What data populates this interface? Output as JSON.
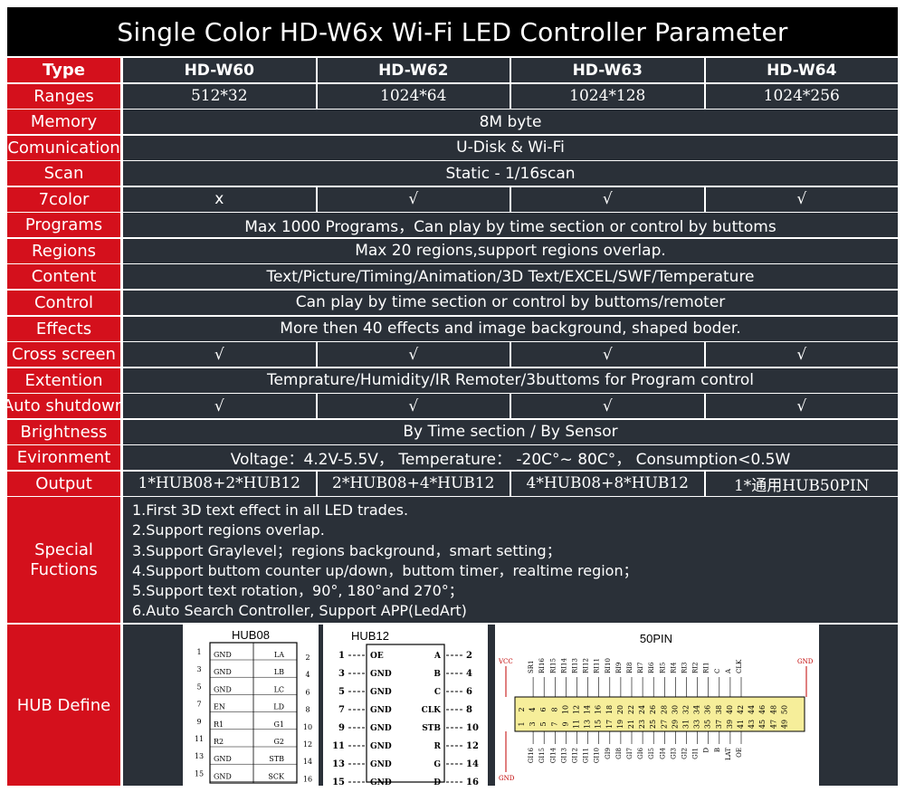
{
  "title": "Single Color HD-W6x Wi-Fi LED Controller Parameter",
  "colors": {
    "label_bg": "#d4101c",
    "value_bg": "#2a3038",
    "title_bg": "#000000",
    "text": "#ffffff"
  },
  "header": {
    "label": "Type",
    "models": [
      "HD-W60",
      "HD-W62",
      "HD-W63",
      "HD-W64"
    ]
  },
  "rows": [
    {
      "label": "Ranges",
      "values": [
        "512*32",
        "1024*64",
        "1024*128",
        "1024*256"
      ]
    },
    {
      "label": "Memory",
      "span": "8M byte"
    },
    {
      "label": "Comunication",
      "span": "U-Disk & Wi-Fi"
    },
    {
      "label": "Scan",
      "span": "Static - 1/16scan"
    },
    {
      "label": "7color",
      "values": [
        "x",
        "√",
        "√",
        "√"
      ]
    },
    {
      "label": "Programs",
      "span": "Max 1000 Programs，Can play by time section or control by buttoms"
    },
    {
      "label": "Regions",
      "span": "Max 20 regions,support regions overlap."
    },
    {
      "label": "Content",
      "span": "Text/Picture/Timing/Animation/3D Text/EXCEL/SWF/Temperature"
    },
    {
      "label": "Control",
      "span": "Can play by time section or control by buttoms/remoter"
    },
    {
      "label": "Effects",
      "span": "More then 40 effects and image background, shaped boder."
    },
    {
      "label": "Cross screen",
      "values": [
        "√",
        "√",
        "√",
        "√"
      ]
    },
    {
      "label": "Extention",
      "span": "Temprature/Humidity/IR Remoter/3buttoms for Program control"
    },
    {
      "label": "Auto shutdown",
      "values": [
        "√",
        "√",
        "√",
        "√"
      ]
    },
    {
      "label": "Brightness",
      "span": "By Time section / By Sensor"
    },
    {
      "label": "Evironment",
      "span": "Voltage：4.2V-5.5V，  Temperature： -20C°~ 80C°，  Consumption<0.5W"
    },
    {
      "label": "Output",
      "values": [
        "1*HUB08+2*HUB12",
        "2*HUB08+4*HUB12",
        "4*HUB08+8*HUB12",
        "1*通用HUB50PIN"
      ]
    }
  ],
  "special": {
    "label": "Special Fuctions",
    "items": [
      "1.First 3D text effect in all LED trades.",
      "2.Support regions overlap.",
      "3.Support Graylevel；regions background，smart setting；",
      "4.Support buttom counter up/down，buttom timer，realtime region；",
      "5.Support text rotation，90°, 180°and 270°；",
      "6.Auto Search Controller, Support APP(LedArt)"
    ]
  },
  "hub": {
    "label": "HUB Define",
    "hub08": {
      "title": "HUB08",
      "left_nums": [
        "1",
        "3",
        "5",
        "7",
        "9",
        "11",
        "13",
        "15"
      ],
      "left_sig": [
        "GND",
        "GND",
        "GND",
        "EN",
        "R1",
        "R2",
        "GND",
        "GND"
      ],
      "right_sig": [
        "LA",
        "LB",
        "LC",
        "LD",
        "G1",
        "G2",
        "STB",
        "SCK"
      ],
      "right_nums": [
        "2",
        "4",
        "6",
        "8",
        "10",
        "12",
        "14",
        "16"
      ]
    },
    "hub12": {
      "title": "HUB12",
      "left_nums": [
        "1",
        "3",
        "5",
        "7",
        "9",
        "11",
        "13",
        "15"
      ],
      "left_sig": [
        "OE",
        "GND",
        "GND",
        "GND",
        "GND",
        "GND",
        "GND",
        "GND"
      ],
      "right_sig": [
        "A",
        "B",
        "C",
        "CLK",
        "STB",
        "R",
        "G",
        "D"
      ],
      "right_nums": [
        "2",
        "4",
        "6",
        "8",
        "10",
        "12",
        "14",
        "16"
      ]
    },
    "hub50": {
      "title": "50PIN",
      "vcc": "VCC",
      "gnd_top": "GND",
      "gnd_bottom": "GND",
      "top_sig": [
        "SR1",
        "RI16",
        "RI15",
        "RI14",
        "RI13",
        "RI12",
        "RI11",
        "RI10",
        "RI9",
        "RI8",
        "RI7",
        "RI6",
        "RI5",
        "RI4",
        "RI3",
        "RI2",
        "RI1",
        "C",
        "A",
        "CLK"
      ],
      "even_nums": [
        "2",
        "4",
        "6",
        "8",
        "10",
        "12",
        "14",
        "16",
        "18",
        "20",
        "22",
        "24",
        "26",
        "28",
        "30",
        "32",
        "34",
        "36",
        "38",
        "40",
        "42",
        "44",
        "46",
        "48",
        "50"
      ],
      "odd_nums": [
        "1",
        "3",
        "5",
        "7",
        "9",
        "11",
        "13",
        "15",
        "17",
        "19",
        "21",
        "23",
        "25",
        "27",
        "29",
        "31",
        "33",
        "35",
        "37",
        "39",
        "41",
        "43",
        "45",
        "47",
        "49"
      ],
      "bottom_sig": [
        "GI16",
        "GI15",
        "GI14",
        "GI13",
        "GI12",
        "GI11",
        "GI10",
        "GI9",
        "GI8",
        "GI7",
        "GI6",
        "GI5",
        "GI4",
        "GI3",
        "GI2",
        "GI1",
        "D",
        "B",
        "LAT",
        "OE"
      ]
    }
  }
}
